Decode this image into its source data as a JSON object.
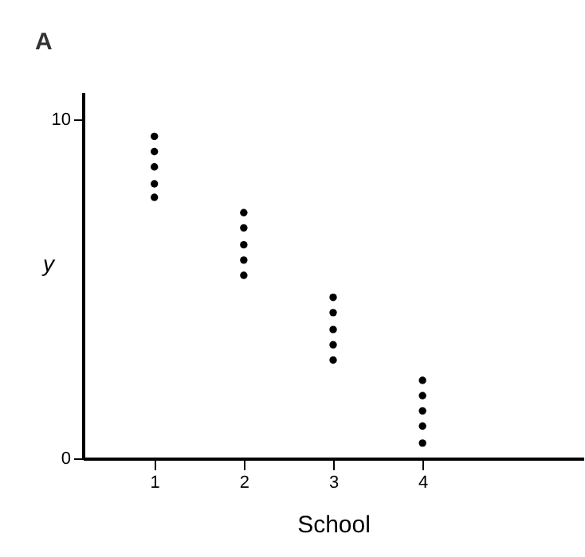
{
  "chart_data": {
    "type": "scatter",
    "title": "A",
    "xlabel": "School",
    "ylabel": "y",
    "xlim": [
      0.2,
      5.8
    ],
    "xticks": [
      1,
      2,
      3,
      4
    ],
    "ylim": [
      0,
      10.8
    ],
    "yticks": [
      0,
      10
    ],
    "grid": false,
    "marker": "circle",
    "x": [
      1,
      1,
      1,
      1,
      1,
      2,
      2,
      2,
      2,
      2,
      3,
      3,
      3,
      3,
      3,
      4,
      4,
      4,
      4,
      4
    ],
    "series": [
      {
        "color": "#000000",
        "values": [
          9.5,
          9.05,
          8.6,
          8.1,
          7.7,
          7.25,
          6.8,
          6.3,
          5.85,
          5.4,
          4.75,
          4.3,
          3.8,
          3.35,
          2.9,
          2.3,
          1.85,
          1.4,
          0.95,
          0.45
        ]
      }
    ]
  }
}
